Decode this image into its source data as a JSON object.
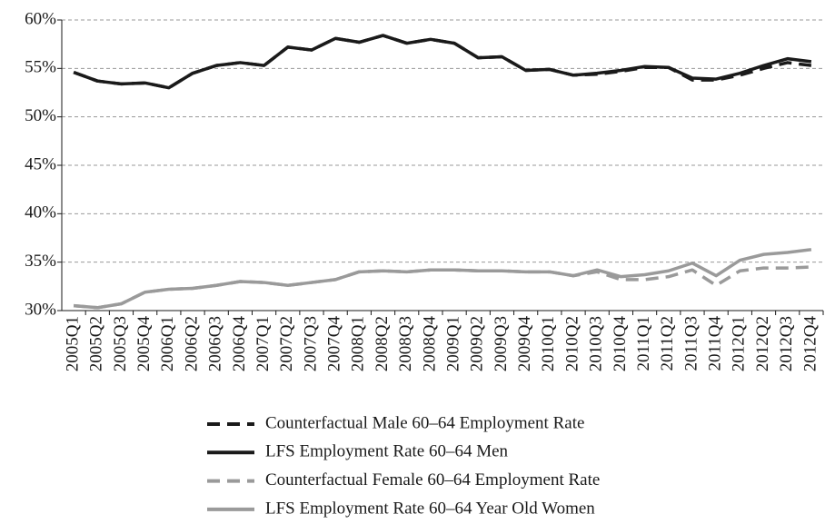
{
  "chart_data": {
    "type": "line",
    "categories": [
      "2005Q1",
      "2005Q2",
      "2005Q3",
      "2005Q4",
      "2006Q1",
      "2006Q2",
      "2006Q3",
      "2006Q4",
      "2007Q1",
      "2007Q2",
      "2007Q3",
      "2007Q4",
      "2008Q1",
      "2008Q2",
      "2008Q3",
      "2008Q4",
      "2009Q1",
      "2009Q2",
      "2009Q3",
      "2009Q4",
      "2010Q1",
      "2010Q2",
      "2010Q3",
      "2010Q4",
      "2011Q1",
      "2011Q2",
      "2011Q3",
      "2011Q4",
      "2012Q1",
      "2012Q2",
      "2012Q3",
      "2012Q4"
    ],
    "series": [
      {
        "name": "Counterfactual Male 60–64 Employment Rate",
        "color": "#1a1a1a",
        "dashed": true,
        "values": [
          54.6,
          53.7,
          53.4,
          53.5,
          53.0,
          54.5,
          55.3,
          55.6,
          55.3,
          57.2,
          56.9,
          58.1,
          57.7,
          58.4,
          57.6,
          58.0,
          57.6,
          56.1,
          56.2,
          54.8,
          54.9,
          54.3,
          54.4,
          54.7,
          55.1,
          55.1,
          53.8,
          53.8,
          54.3,
          55.0,
          55.6,
          55.3
        ]
      },
      {
        "name": "LFS Employment Rate 60–64 Men",
        "color": "#1a1a1a",
        "dashed": false,
        "values": [
          54.6,
          53.7,
          53.4,
          53.5,
          53.0,
          54.5,
          55.3,
          55.6,
          55.3,
          57.2,
          56.9,
          58.1,
          57.7,
          58.4,
          57.6,
          58.0,
          57.6,
          56.1,
          56.2,
          54.8,
          54.9,
          54.3,
          54.5,
          54.8,
          55.2,
          55.1,
          54.0,
          53.9,
          54.5,
          55.3,
          56.0,
          55.7
        ]
      },
      {
        "name": "Counterfactual Female 60–64 Employment Rate",
        "color": "#9a9a9a",
        "dashed": true,
        "values": [
          30.5,
          30.3,
          30.7,
          31.9,
          32.2,
          32.3,
          32.6,
          33.0,
          32.9,
          32.6,
          32.9,
          33.2,
          34.0,
          34.1,
          34.0,
          34.2,
          34.2,
          34.1,
          34.1,
          34.0,
          34.0,
          33.6,
          34.0,
          33.2,
          33.2,
          33.5,
          34.2,
          32.6,
          34.1,
          34.4,
          34.4,
          34.5
        ]
      },
      {
        "name": "LFS Employment Rate 60–64 Year Old Women",
        "color": "#9a9a9a",
        "dashed": false,
        "values": [
          30.5,
          30.3,
          30.7,
          31.9,
          32.2,
          32.3,
          32.6,
          33.0,
          32.9,
          32.6,
          32.9,
          33.2,
          34.0,
          34.1,
          34.0,
          34.2,
          34.2,
          34.1,
          34.1,
          34.0,
          34.0,
          33.6,
          34.2,
          33.5,
          33.7,
          34.1,
          34.9,
          33.6,
          35.2,
          35.8,
          36.0,
          36.3
        ]
      }
    ],
    "ylim": [
      30,
      60
    ],
    "yticks": [
      {
        "value": 30,
        "label": "30%"
      },
      {
        "value": 35,
        "label": "35%"
      },
      {
        "value": 40,
        "label": "40%"
      },
      {
        "value": 45,
        "label": "45%"
      },
      {
        "value": 50,
        "label": "50%"
      },
      {
        "value": 55,
        "label": "55%"
      },
      {
        "value": 60,
        "label": "60%"
      }
    ],
    "grid": true
  }
}
